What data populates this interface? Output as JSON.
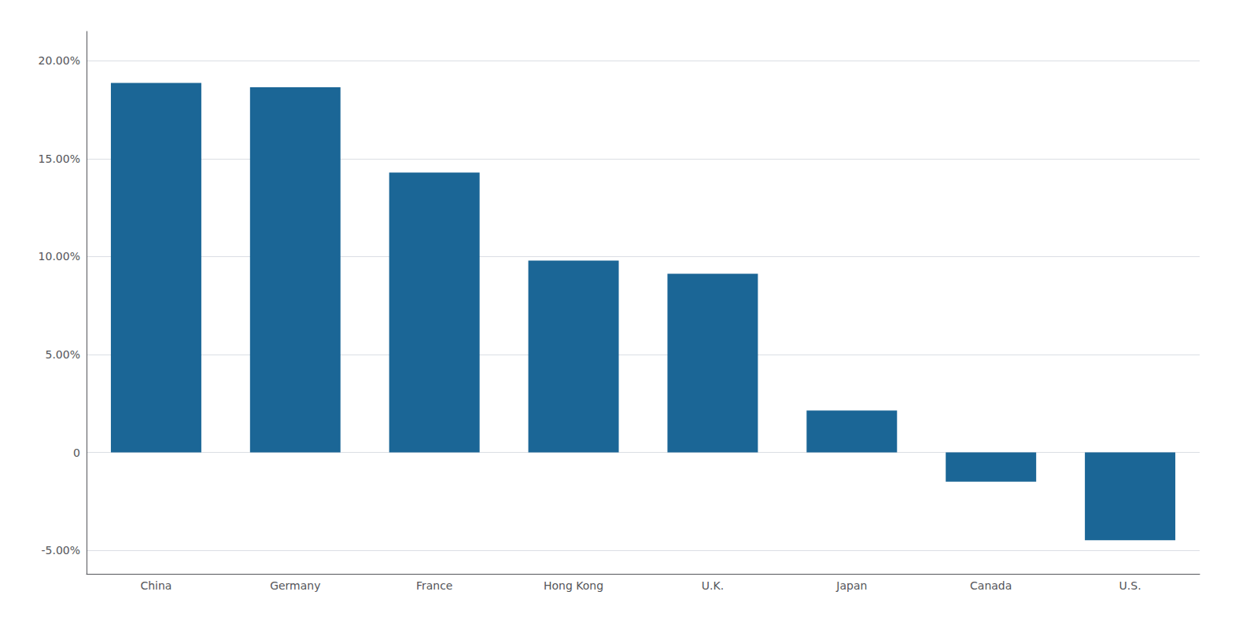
{
  "chart_data": {
    "type": "bar",
    "categories": [
      "China",
      "Germany",
      "France",
      "Hong Kong",
      "U.K.",
      "Japan",
      "Canada",
      "U.S."
    ],
    "values": [
      18.87,
      18.65,
      14.29,
      9.8,
      9.13,
      2.14,
      -1.49,
      -4.48
    ],
    "color": "#1B6696",
    "ylim": [
      -6.2,
      21.5
    ],
    "yticks": [
      {
        "value": -5.0,
        "label": "-5.00%"
      },
      0,
      {
        "value": 5.0,
        "label": "5.00%"
      },
      {
        "value": 10.0,
        "label": "10.00%"
      },
      {
        "value": 15.0,
        "label": "15.00%"
      },
      {
        "value": 20.0,
        "label": "20.00%"
      }
    ],
    "grid": true
  }
}
